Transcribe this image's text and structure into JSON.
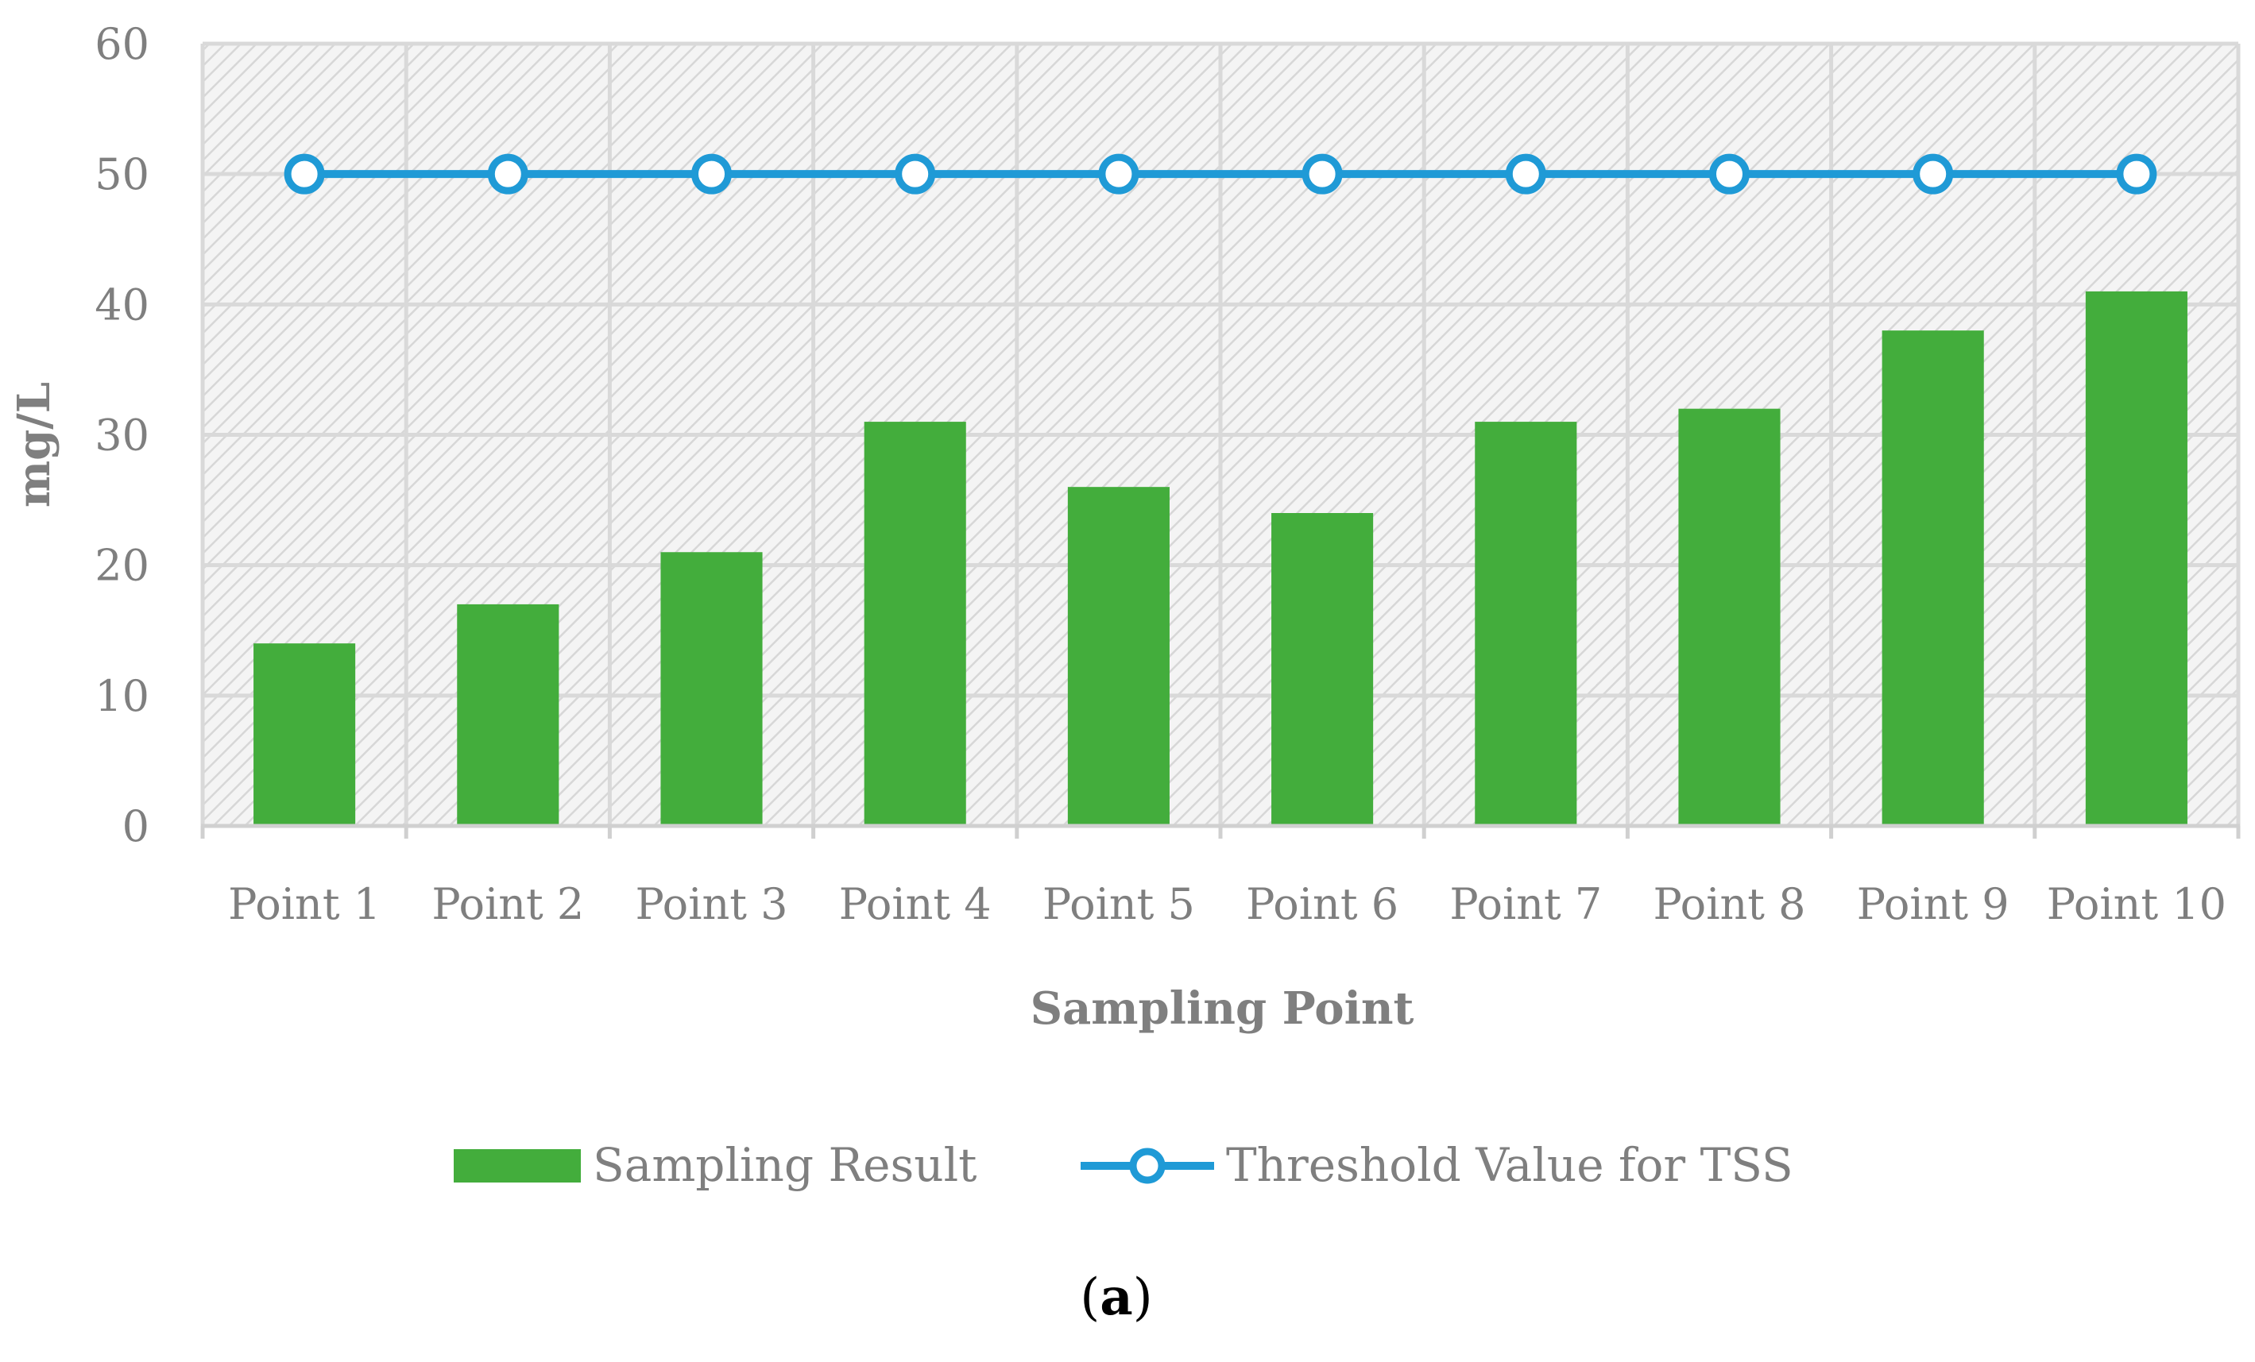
{
  "chart_data": {
    "type": "bar",
    "categories": [
      "Point 1",
      "Point 2",
      "Point 3",
      "Point 4",
      "Point 5",
      "Point 6",
      "Point 7",
      "Point 8",
      "Point 9",
      "Point 10"
    ],
    "series": [
      {
        "name": "Sampling Result",
        "type": "bar",
        "color": "#43ad3c",
        "values": [
          14,
          17,
          21,
          31,
          26,
          24,
          31,
          32,
          38,
          41
        ]
      },
      {
        "name": "Threshold Value for TSS",
        "type": "line",
        "color": "#1f9ad6",
        "marker": "circle",
        "values": [
          50,
          50,
          50,
          50,
          50,
          50,
          50,
          50,
          50,
          50
        ]
      }
    ],
    "xlabel": "Sampling Point",
    "ylabel": "mg/L",
    "ylim": [
      0,
      60
    ],
    "yticks": [
      "0",
      "10",
      "20",
      "30",
      "40",
      "50",
      "60"
    ],
    "grid": true,
    "plot_background": "hatched light gray",
    "legend_position": "bottom"
  },
  "caption": {
    "open": "(",
    "letter": "a",
    "close": ")"
  }
}
